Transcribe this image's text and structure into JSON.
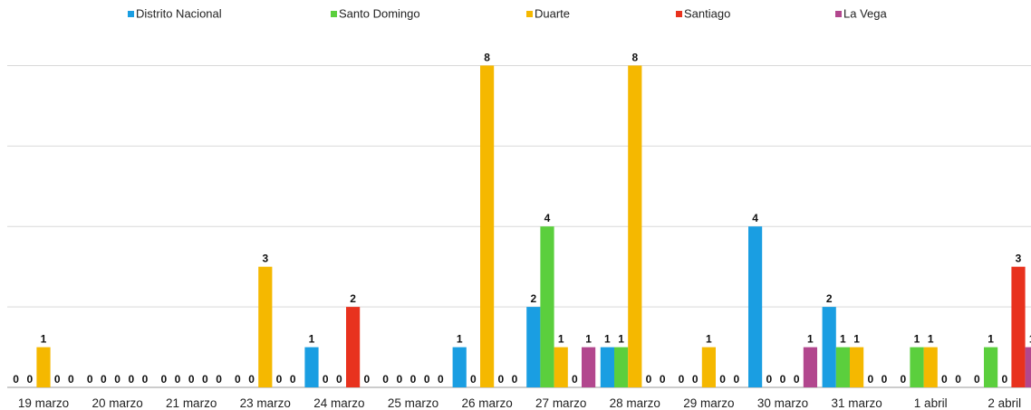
{
  "chart_data": {
    "type": "bar",
    "categories": [
      "19 marzo",
      "20 marzo",
      "21 marzo",
      "23 marzo",
      "24 marzo",
      "25 marzo",
      "26 marzo",
      "27 marzo",
      "28 marzo",
      "29 marzo",
      "30 marzo",
      "31 marzo",
      "1 abril",
      "2 abril"
    ],
    "series": [
      {
        "name": "Distrito Nacional",
        "color": "#1a9ee2",
        "values": [
          0,
          0,
          0,
          0,
          1,
          0,
          1,
          2,
          1,
          0,
          4,
          2,
          0,
          0
        ]
      },
      {
        "name": "Santo Domingo",
        "color": "#5bcf3d",
        "values": [
          0,
          0,
          0,
          0,
          0,
          0,
          0,
          4,
          1,
          0,
          0,
          1,
          1,
          1
        ]
      },
      {
        "name": "Duarte",
        "color": "#f5b800",
        "values": [
          1,
          0,
          0,
          3,
          0,
          0,
          8,
          1,
          8,
          1,
          0,
          1,
          1,
          0
        ]
      },
      {
        "name": "Santiago",
        "color": "#e8321e",
        "values": [
          0,
          0,
          0,
          0,
          2,
          0,
          0,
          0,
          0,
          0,
          0,
          0,
          0,
          3
        ]
      },
      {
        "name": "La Vega",
        "color": "#b2478e",
        "values": [
          0,
          0,
          0,
          0,
          0,
          0,
          0,
          1,
          0,
          0,
          1,
          0,
          0,
          1
        ]
      }
    ],
    "ylim": [
      0,
      9
    ],
    "grid": true,
    "legend_position": "top"
  }
}
